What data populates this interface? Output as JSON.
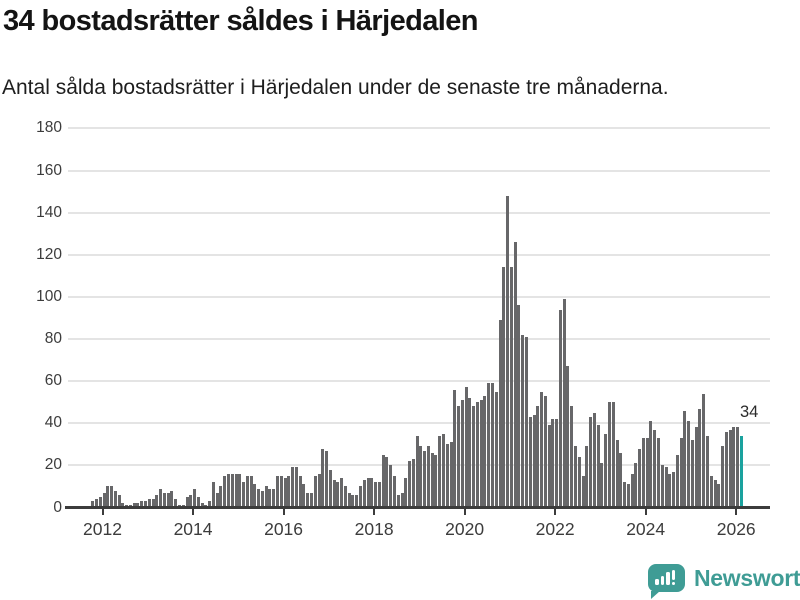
{
  "header": {
    "title": "34 bostadsrätter såldes i Härjedalen",
    "subtitle": "Antal sålda bostadsrätter i Härjedalen under de senaste tre månaderna."
  },
  "chart_data": {
    "type": "bar",
    "title": "34 bostadsrätter såldes i Härjedalen",
    "subtitle": "Antal sålda bostadsrätter i Härjedalen under de senaste tre månaderna.",
    "x_start_month": "2011-10",
    "x_end_month": "2026-02",
    "x_tick_labels": [
      "2012",
      "2014",
      "2016",
      "2018",
      "2020",
      "2022",
      "2024",
      "2026"
    ],
    "y_ticks": [
      0,
      20,
      40,
      60,
      80,
      100,
      120,
      140,
      160,
      180
    ],
    "ylim": [
      0,
      180
    ],
    "grid": "horizontal",
    "bar_color": "#676769",
    "values": [
      3,
      4,
      5,
      7,
      10,
      10,
      8,
      6,
      2,
      1,
      1,
      2,
      2,
      3,
      3,
      4,
      4,
      6,
      9,
      7,
      7,
      8,
      4,
      1,
      1,
      5,
      6,
      9,
      5,
      2,
      1,
      3,
      12,
      7,
      10,
      15,
      16,
      16,
      16,
      16,
      12,
      15,
      15,
      11,
      9,
      8,
      10,
      9,
      9,
      15,
      15,
      14,
      15,
      19,
      19,
      15,
      11,
      7,
      7,
      15,
      16,
      28,
      27,
      18,
      13,
      12,
      14,
      10,
      7,
      6,
      6,
      10,
      13,
      14,
      14,
      12,
      12,
      25,
      24,
      20,
      15,
      6,
      7,
      14,
      22,
      23,
      34,
      29,
      27,
      29,
      26,
      25,
      34,
      35,
      30,
      31,
      56,
      48,
      51,
      57,
      52,
      48,
      50,
      51,
      53,
      59,
      59,
      55,
      89,
      114,
      148,
      114,
      126,
      96,
      82,
      81,
      43,
      44,
      48,
      55,
      53,
      39,
      42,
      42,
      94,
      99,
      67,
      48,
      29,
      24,
      15,
      29,
      43,
      45,
      39,
      21,
      35,
      50,
      50,
      32,
      26,
      12,
      11,
      16,
      21,
      28,
      33,
      33,
      41,
      37,
      33,
      20,
      19,
      16,
      17,
      25,
      33,
      46,
      41,
      32,
      38,
      47,
      54,
      34,
      15,
      13,
      11,
      29,
      36,
      37,
      38,
      38,
      34
    ],
    "highlight": {
      "index": 172,
      "value": 34,
      "label": "34",
      "color": "#1aa29e"
    }
  },
  "footer": {
    "brand": "Newsworthy",
    "brand_color": "#3f9c95"
  }
}
